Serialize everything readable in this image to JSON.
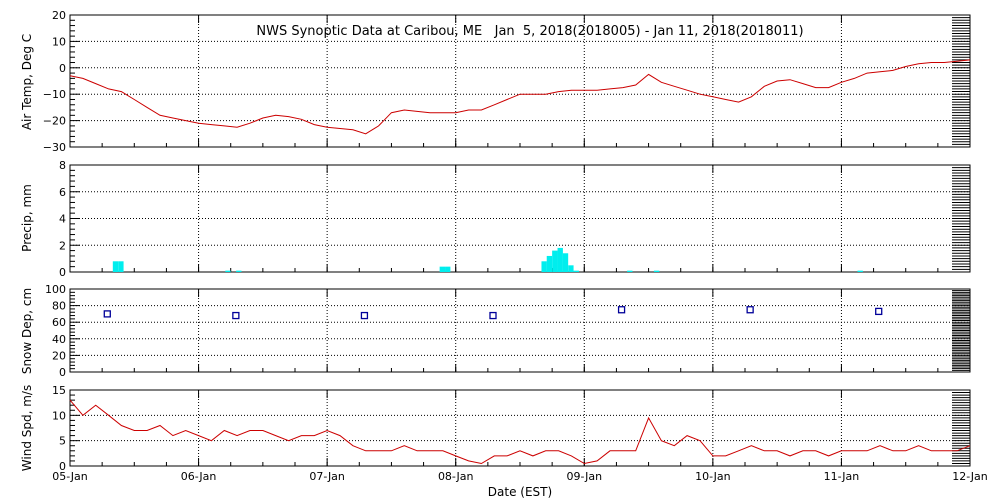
{
  "colors": {
    "background": "#ffffff",
    "axis": "#000000",
    "grid": "#000000",
    "temperature": "#cc0000",
    "precip": "#00eeee",
    "snow": "#000099",
    "wind": "#cc0000"
  },
  "chart_data": [
    {
      "type": "line",
      "title": "NWS Synoptic Data at Caribou, ME   Jan  5, 2018(2018005) - Jan 11, 2018(2018011)",
      "xlabel": "",
      "ylabel": "Air Temp, Deg C",
      "xlim": [
        0,
        7
      ],
      "ylim": [
        -30,
        20
      ],
      "yticks": [
        20,
        10,
        0,
        -10,
        -20,
        -30
      ],
      "ytick_labels": [
        "20",
        "10",
        "0",
        "−10",
        "−20",
        "−30"
      ],
      "grid": true,
      "x_unit": "days since 05-Jan 00:00 EST",
      "series": [
        {
          "x": [
            0.0,
            0.1,
            0.2,
            0.3,
            0.4,
            0.5,
            0.6,
            0.7,
            0.8,
            0.9,
            1.0,
            1.1,
            1.2,
            1.3,
            1.4,
            1.5,
            1.6,
            1.7,
            1.8,
            1.9,
            2.0,
            2.1,
            2.2,
            2.3,
            2.4,
            2.5,
            2.6,
            2.7,
            2.8,
            2.9,
            3.0,
            3.1,
            3.2,
            3.3,
            3.4,
            3.5,
            3.6,
            3.7,
            3.8,
            3.9,
            4.0,
            4.1,
            4.2,
            4.3,
            4.4,
            4.5,
            4.6,
            4.7,
            4.8,
            4.9,
            5.0,
            5.1,
            5.2,
            5.3,
            5.4,
            5.5,
            5.6,
            5.7,
            5.8,
            5.9,
            6.0,
            6.1,
            6.2,
            6.3,
            6.4,
            6.5,
            6.6,
            6.7,
            6.8,
            6.9,
            7.0
          ],
          "values": [
            -3,
            -4,
            -6,
            -8,
            -9,
            -12,
            -15,
            -18,
            -19,
            -20,
            -21,
            -21.5,
            -22,
            -22.5,
            -21,
            -19,
            -18,
            -18.5,
            -19.5,
            -21.5,
            -22.5,
            -23,
            -23.5,
            -25,
            -22,
            -17,
            -16,
            -16.5,
            -17,
            -17,
            -17,
            -16,
            -16,
            -14,
            -12,
            -10,
            -10,
            -10,
            -9,
            -8.5,
            -8.5,
            -8.5,
            -8,
            -7.5,
            -6.5,
            -2.5,
            -5.5,
            -7,
            -8.5,
            -10,
            -11,
            -12,
            -13,
            -11,
            -7,
            -5,
            -4.5,
            -6,
            -7.5,
            -7.5,
            -5.5,
            -4,
            -2,
            -1.5,
            -1,
            0.5,
            1.5,
            2,
            2,
            2.5,
            3
          ]
        }
      ]
    },
    {
      "type": "bar",
      "title": "",
      "xlabel": "",
      "ylabel": "Precip, mm",
      "xlim": [
        0,
        7
      ],
      "ylim": [
        0,
        8
      ],
      "yticks": [
        8,
        6,
        4,
        2,
        0
      ],
      "grid": true,
      "x_unit": "days since 05-Jan 00:00 EST",
      "bar_width_days": 0.04167,
      "x": [
        0.333,
        0.375,
        1.208,
        1.292,
        2.875,
        2.917,
        3.667,
        3.708,
        3.75,
        3.792,
        3.833,
        3.875,
        3.917,
        4.333,
        4.542,
        6.125
      ],
      "values": [
        0.8,
        0.8,
        0.1,
        0.1,
        0.4,
        0.4,
        0.8,
        1.2,
        1.6,
        1.8,
        1.4,
        0.5,
        0.1,
        0.1,
        0.1,
        0.1
      ]
    },
    {
      "type": "scatter",
      "title": "",
      "xlabel": "",
      "ylabel": "Snow Dep, cm",
      "xlim": [
        0,
        7
      ],
      "ylim": [
        0,
        100
      ],
      "yticks": [
        100,
        80,
        60,
        40,
        20,
        0
      ],
      "grid": true,
      "x_unit": "days since 05-Jan 00:00 EST",
      "x": [
        0.29,
        1.29,
        2.29,
        3.29,
        4.29,
        5.29,
        6.29
      ],
      "values": [
        70,
        68,
        68,
        68,
        75,
        75,
        73
      ]
    },
    {
      "type": "line",
      "title": "",
      "xlabel": "Date (EST)",
      "ylabel": "Wind Spd, m/s",
      "xlim": [
        0,
        7
      ],
      "ylim": [
        0,
        15
      ],
      "yticks": [
        15,
        10,
        5,
        0
      ],
      "grid": true,
      "x_unit": "days since 05-Jan 00:00 EST",
      "categories": [
        "05-Jan",
        "06-Jan",
        "07-Jan",
        "08-Jan",
        "09-Jan",
        "10-Jan",
        "11-Jan",
        "12-Jan"
      ],
      "series": [
        {
          "x": [
            0.0,
            0.1,
            0.2,
            0.3,
            0.4,
            0.5,
            0.6,
            0.7,
            0.8,
            0.9,
            1.0,
            1.1,
            1.2,
            1.3,
            1.4,
            1.5,
            1.6,
            1.7,
            1.8,
            1.9,
            2.0,
            2.1,
            2.2,
            2.3,
            2.4,
            2.5,
            2.6,
            2.7,
            2.8,
            2.9,
            3.0,
            3.1,
            3.2,
            3.3,
            3.4,
            3.5,
            3.6,
            3.7,
            3.8,
            3.9,
            4.0,
            4.1,
            4.2,
            4.3,
            4.4,
            4.5,
            4.6,
            4.7,
            4.8,
            4.9,
            5.0,
            5.1,
            5.2,
            5.3,
            5.4,
            5.5,
            5.6,
            5.7,
            5.8,
            5.9,
            6.0,
            6.1,
            6.2,
            6.3,
            6.4,
            6.5,
            6.6,
            6.7,
            6.8,
            6.9,
            7.0
          ],
          "values": [
            13,
            10,
            12,
            10,
            8,
            7,
            7,
            8,
            6,
            7,
            6,
            5,
            7,
            6,
            7,
            7,
            6,
            5,
            6,
            6,
            7,
            6,
            4,
            3,
            3,
            3,
            4,
            3,
            3,
            3,
            2,
            1,
            0.5,
            2,
            2,
            3,
            2,
            3,
            3,
            2,
            0.5,
            1,
            3,
            3,
            3,
            9.5,
            5,
            4,
            6,
            5,
            2,
            2,
            3,
            4,
            3,
            3,
            2,
            3,
            3,
            2,
            3,
            3,
            3,
            4,
            3,
            3,
            4,
            3,
            3,
            3,
            4
          ]
        }
      ]
    }
  ]
}
